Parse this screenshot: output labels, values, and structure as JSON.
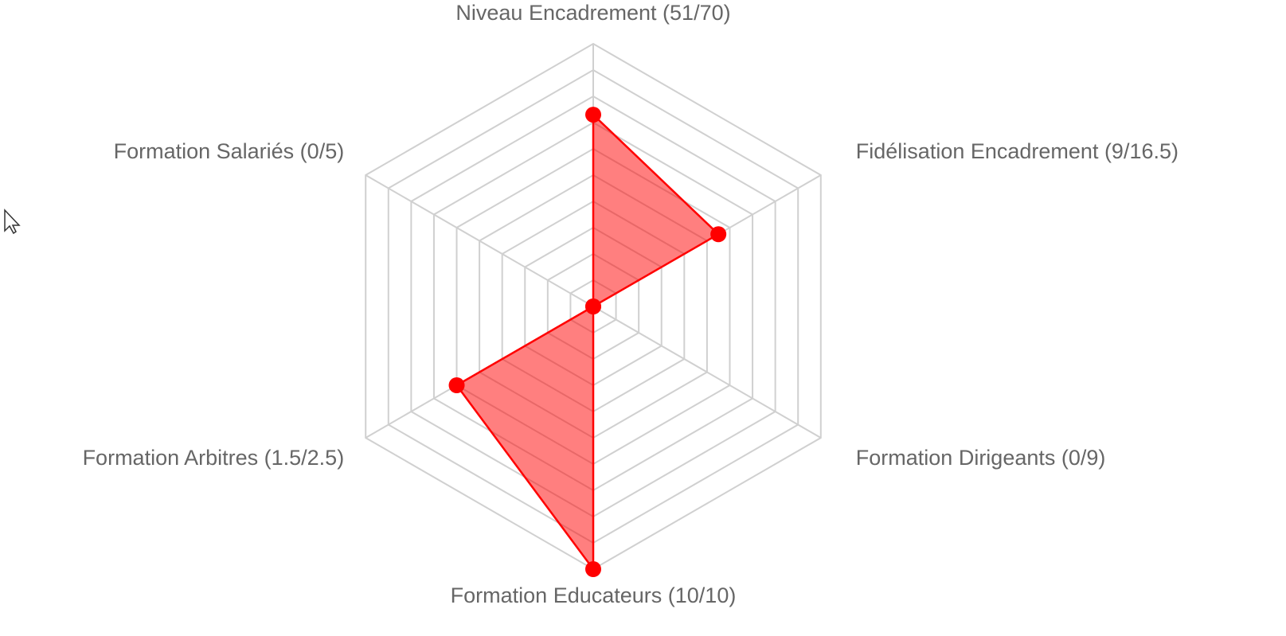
{
  "chart_data": {
    "type": "radar",
    "categories": [
      "Niveau Encadrement (51/70)",
      "Fidélisation Encadrement (9/16.5)",
      "Formation Dirigeants (0/9)",
      "Formation Educateurs (10/10)",
      "Formation Arbitres (1.5/2.5)",
      "Formation Salariés (0/5)"
    ],
    "values": [
      73,
      55,
      0,
      100,
      60,
      0
    ],
    "color": "#ff0000",
    "rlim": [
      0,
      100
    ],
    "rticks": [
      0,
      10,
      20,
      30,
      40,
      50,
      60,
      70,
      80,
      90,
      100
    ],
    "grid": true
  }
}
